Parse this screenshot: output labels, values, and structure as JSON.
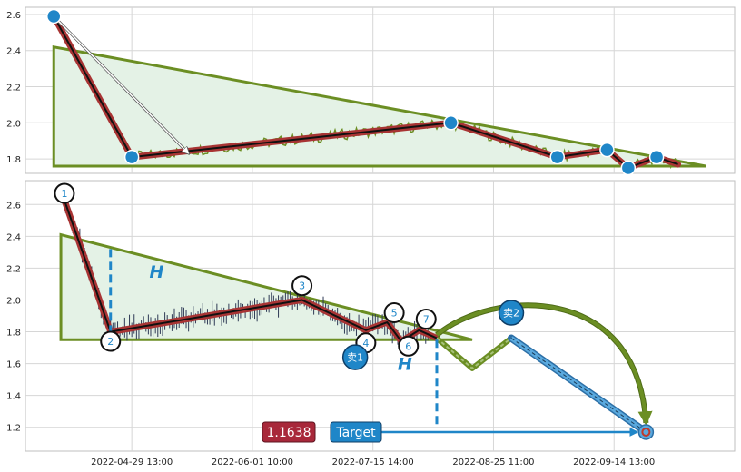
{
  "colors": {
    "grid": "#d6d6d6",
    "frame": "#bfbfbf",
    "triangle": "#6b8e23",
    "triangle_fill": "#e4f2e6",
    "wave_outer": "#a83434",
    "wave_inner": "#111111",
    "price_line": "#6b8e23",
    "candles": "#2e3a55",
    "node": "#1f86c8",
    "label_ring": "#111111",
    "label_text": "#1f86c8",
    "h_color": "#1f86c8",
    "projection": "#6b8e23",
    "projection_fill": "#a8c27a",
    "blue_path": "#5aa9de",
    "target_box": "#1f86c8",
    "value_box": "#a8283a",
    "target_ring": "#c0392b"
  },
  "chart_data": [
    {
      "type": "line",
      "panel": "top",
      "ylim": [
        1.72,
        2.64
      ],
      "yticks": [
        "2.6",
        "2.4",
        "2.2",
        "2.0",
        "1.8"
      ],
      "ytick_values": [
        2.6,
        2.4,
        2.2,
        2.0,
        1.8
      ],
      "xlim": [
        0,
        100
      ],
      "triangle": [
        [
          4,
          2.42
        ],
        [
          4,
          1.76
        ],
        [
          96,
          1.76
        ]
      ],
      "wave": [
        [
          4,
          2.59
        ],
        [
          15,
          1.81
        ],
        [
          60,
          2.0
        ],
        [
          75,
          1.81
        ],
        [
          82,
          1.85
        ],
        [
          85,
          1.75
        ],
        [
          89,
          1.81
        ],
        [
          92,
          1.77
        ]
      ],
      "nodes": [
        [
          4,
          2.59
        ],
        [
          15,
          1.81
        ],
        [
          60,
          2.0
        ],
        [
          75,
          1.81
        ],
        [
          82,
          1.85
        ],
        [
          85,
          1.75
        ],
        [
          89,
          1.81
        ]
      ],
      "arrow": [
        [
          4,
          2.59
        ],
        [
          23,
          1.83
        ]
      ]
    },
    {
      "type": "line",
      "panel": "bottom",
      "ylim": [
        1.05,
        2.75
      ],
      "yticks": [
        "2.6",
        "2.4",
        "2.2",
        "2.0",
        "1.8",
        "1.6",
        "1.4",
        "1.2"
      ],
      "ytick_values": [
        2.6,
        2.4,
        2.2,
        2.0,
        1.8,
        1.6,
        1.4,
        1.2
      ],
      "xlim": [
        0,
        100
      ],
      "xticks": [
        "2022-04-29 13:00",
        "2022-06-01 10:00",
        "2022-07-15 14:00",
        "2022-08-25 11:00",
        "2022-09-14 13:00"
      ],
      "xtick_positions": [
        15,
        32,
        49,
        66,
        83
      ],
      "triangle": [
        [
          5,
          2.41
        ],
        [
          5,
          1.75
        ],
        [
          63,
          1.75
        ]
      ],
      "wave": [
        [
          5,
          2.69
        ],
        [
          12,
          1.8
        ],
        [
          39,
          2.0
        ],
        [
          48,
          1.81
        ],
        [
          51,
          1.86
        ],
        [
          53,
          1.74
        ],
        [
          55.5,
          1.81
        ],
        [
          58,
          1.76
        ]
      ],
      "wave_labels": [
        {
          "text": "1",
          "x": 5.5,
          "y": 2.67
        },
        {
          "text": "2",
          "x": 12,
          "y": 1.74
        },
        {
          "text": "3",
          "x": 39,
          "y": 2.09
        },
        {
          "text": "4",
          "x": 48,
          "y": 1.73
        },
        {
          "text": "5",
          "x": 52,
          "y": 1.92
        },
        {
          "text": "6",
          "x": 54,
          "y": 1.71
        },
        {
          "text": "7",
          "x": 56.5,
          "y": 1.88
        }
      ],
      "h_labels": [
        {
          "text": "H",
          "x": 18.5,
          "y": 2.18
        },
        {
          "text": "H",
          "x": 53.5,
          "y": 1.6
        }
      ],
      "sell_labels": [
        {
          "text": "卖1",
          "x": 46.5,
          "y": 1.64
        },
        {
          "text": "卖2",
          "x": 68.5,
          "y": 1.92
        }
      ],
      "h_dashes": [
        {
          "x": 12,
          "y1": 2.32,
          "y2": 1.8
        },
        {
          "x": 58,
          "y1": 1.75,
          "y2": 1.2
        }
      ],
      "projection": [
        [
          58,
          1.76
        ],
        [
          63,
          1.57
        ],
        [
          68.5,
          1.76
        ],
        [
          87.5,
          1.17
        ]
      ],
      "projection_arc": [
        [
          58,
          1.78
        ],
        [
          87.5,
          1.17
        ]
      ],
      "target_line": [
        [
          48,
          1.17
        ],
        [
          87.5,
          1.17
        ]
      ],
      "target_point": [
        87.5,
        1.17
      ],
      "value_label": "1.1638",
      "target_label": "Target"
    }
  ]
}
